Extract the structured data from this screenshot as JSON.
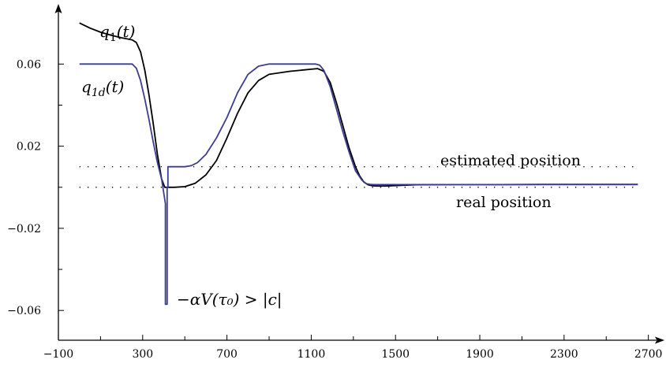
{
  "chart_data": {
    "type": "line",
    "title": "",
    "xlabel": "",
    "ylabel": "",
    "xlim": [
      -100,
      2750
    ],
    "ylim": [
      -0.0745,
      0.0866
    ],
    "x_ticks": [
      -100,
      300,
      700,
      1100,
      1500,
      1900,
      2300,
      2700
    ],
    "x_tick_labels": [
      "−100",
      "300",
      "700",
      "1100",
      "1500",
      "1900",
      "2300",
      "2700"
    ],
    "x_minor_ticks": [
      100,
      500,
      900,
      1300,
      1700,
      2100,
      2500
    ],
    "y_ticks": [
      -0.06,
      -0.02,
      0.02,
      0.06
    ],
    "y_tick_labels": [
      "−0.06",
      "−0.02",
      "0.02",
      "0.06"
    ],
    "y_minor_ticks": [
      -0.04,
      0,
      0.04
    ],
    "grid": false,
    "legend": "none",
    "reference_lines": [
      {
        "label": "estimated position",
        "y": 0.01
      },
      {
        "label": "real position",
        "y": 0.0
      }
    ],
    "series": [
      {
        "name": "q1(t)",
        "color": "#000000",
        "x": [
          0,
          50,
          100,
          150,
          200,
          250,
          270,
          290,
          310,
          330,
          350,
          370,
          390,
          405,
          450,
          500,
          550,
          600,
          650,
          700,
          750,
          800,
          850,
          900,
          1000,
          1100,
          1130,
          1160,
          1190,
          1220,
          1250,
          1280,
          1310,
          1330,
          1350,
          1370,
          1390,
          1410,
          1450,
          1600,
          1800,
          2000,
          2200,
          2400,
          2650
        ],
        "y": [
          0.08,
          0.0775,
          0.0755,
          0.074,
          0.0728,
          0.0718,
          0.0705,
          0.066,
          0.057,
          0.045,
          0.031,
          0.016,
          0.004,
          0.0,
          0.0,
          0.0003,
          0.002,
          0.006,
          0.013,
          0.024,
          0.036,
          0.046,
          0.052,
          0.055,
          0.0565,
          0.0575,
          0.0578,
          0.0565,
          0.051,
          0.041,
          0.03,
          0.019,
          0.01,
          0.0055,
          0.0025,
          0.0012,
          0.0007,
          0.0006,
          0.0006,
          0.0012,
          0.0013,
          0.0013,
          0.0014,
          0.0014,
          0.0014
        ]
      },
      {
        "name": "q1d(t)",
        "color": "#3c3c92",
        "x": [
          0,
          100,
          200,
          250,
          270,
          290,
          310,
          330,
          350,
          370,
          390,
          408,
          408,
          416,
          416,
          420,
          420,
          500,
          530,
          560,
          600,
          650,
          700,
          750,
          800,
          850,
          900,
          1000,
          1100,
          1120,
          1140,
          1160,
          1190,
          1220,
          1250,
          1280,
          1310,
          1340,
          1360,
          1380,
          1400,
          1430,
          1500,
          1700,
          2000,
          2300,
          2650
        ],
        "y": [
          0.06,
          0.06,
          0.06,
          0.06,
          0.058,
          0.052,
          0.043,
          0.033,
          0.022,
          0.012,
          0.004,
          -0.008,
          -0.057,
          -0.057,
          0.0,
          0.0,
          0.01,
          0.01,
          0.0105,
          0.012,
          0.016,
          0.024,
          0.034,
          0.046,
          0.055,
          0.059,
          0.06,
          0.06,
          0.06,
          0.06,
          0.0595,
          0.057,
          0.049,
          0.038,
          0.027,
          0.017,
          0.008,
          0.0035,
          0.0018,
          0.0014,
          0.0013,
          0.0013,
          0.0013,
          0.0013,
          0.0013,
          0.0013,
          0.0013
        ]
      }
    ],
    "annotations": [
      {
        "id": "q1",
        "base": "q",
        "sub": "1",
        "tail": "(t)"
      },
      {
        "id": "q1d",
        "base": "q",
        "sub": "1d",
        "tail": "(t)"
      },
      {
        "id": "alpha",
        "text": "−αV(τ₀) > |c|"
      }
    ]
  }
}
